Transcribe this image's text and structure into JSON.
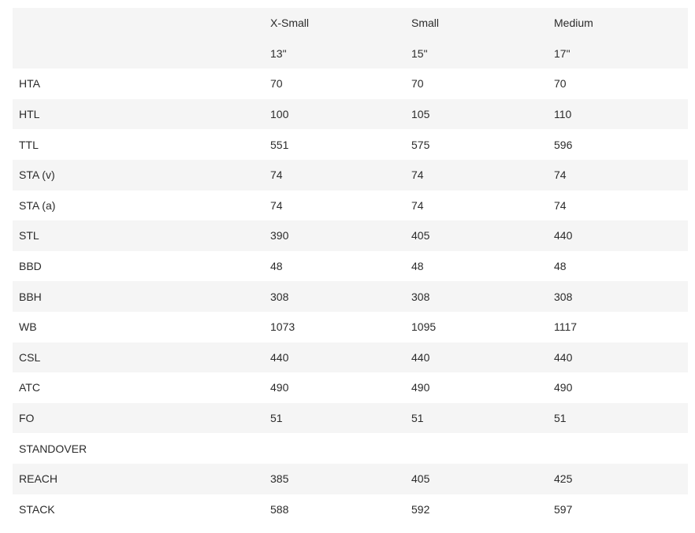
{
  "colors": {
    "stripe": "#f5f5f5",
    "text": "#2b2b2b"
  },
  "table": {
    "headers": [
      "",
      "X-Small",
      "Small",
      "Medium"
    ],
    "rows": [
      [
        "",
        "13\"",
        "15\"",
        "17\""
      ],
      [
        "HTA",
        "70",
        "70",
        "70"
      ],
      [
        "HTL",
        "100",
        "105",
        "110"
      ],
      [
        "TTL",
        "551",
        "575",
        "596"
      ],
      [
        "STA (v)",
        "74",
        "74",
        "74"
      ],
      [
        "STA (a)",
        "74",
        "74",
        "74"
      ],
      [
        "STL",
        "390",
        "405",
        "440"
      ],
      [
        "BBD",
        "48",
        "48",
        "48"
      ],
      [
        "BBH",
        "308",
        "308",
        "308"
      ],
      [
        "WB",
        "1073",
        "1095",
        "1117"
      ],
      [
        "CSL",
        "440",
        "440",
        "440"
      ],
      [
        "ATC",
        "490",
        "490",
        "490"
      ],
      [
        "FO",
        "51",
        "51",
        "51"
      ],
      [
        "STANDOVER",
        "",
        "",
        ""
      ],
      [
        "REACH",
        "385",
        "405",
        "425"
      ],
      [
        "STACK",
        "588",
        "592",
        "597"
      ]
    ]
  }
}
